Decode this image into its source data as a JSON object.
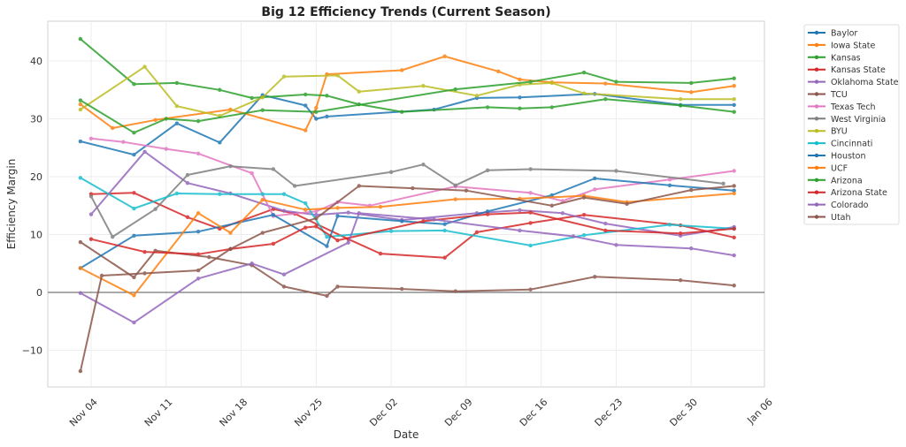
{
  "chart_data": {
    "type": "line",
    "title": "Big 12 Efficiency Trends (Current Season)",
    "xlabel": "Date",
    "ylabel": "Efficiency Margin",
    "x_ticks": [
      "Nov 04",
      "Nov 11",
      "Nov 18",
      "Nov 25",
      "Dec 02",
      "Dec 09",
      "Dec 16",
      "Dec 23",
      "Dec 30",
      "Jan 06"
    ],
    "x_tick_dates": [
      "2023-11-04",
      "2023-11-11",
      "2023-11-18",
      "2023-11-25",
      "2023-12-02",
      "2023-12-09",
      "2023-12-16",
      "2023-12-23",
      "2023-12-30",
      "2024-01-06"
    ],
    "y_ticks": [
      -10,
      0,
      10,
      20,
      30,
      40
    ],
    "xlim": [
      "2023-11-01",
      "2024-01-06"
    ],
    "ylim": [
      -16,
      47
    ],
    "grid": true,
    "zero_line": true,
    "legend_position": "outside-top-right",
    "series": [
      {
        "name": "Baylor",
        "color": "#1f77b4",
        "points": [
          [
            "2023-11-03",
            26.1
          ],
          [
            "2023-11-08",
            23.8
          ],
          [
            "2023-11-12",
            29.2
          ],
          [
            "2023-11-16",
            25.9
          ],
          [
            "2023-11-20",
            34.1
          ],
          [
            "2023-11-24",
            32.3
          ],
          [
            "2023-11-25",
            30.0
          ],
          [
            "2023-11-26",
            30.4
          ],
          [
            "2023-12-06",
            31.6
          ],
          [
            "2023-12-10",
            33.6
          ],
          [
            "2023-12-14",
            33.7
          ],
          [
            "2023-12-21",
            34.3
          ],
          [
            "2023-12-29",
            32.4
          ],
          [
            "2024-01-03",
            32.4
          ]
        ]
      },
      {
        "name": "Iowa State",
        "color": "#ff7f0e",
        "points": [
          [
            "2023-11-03",
            32.5
          ],
          [
            "2023-11-06",
            28.4
          ],
          [
            "2023-11-10",
            29.8
          ],
          [
            "2023-11-17",
            31.6
          ],
          [
            "2023-11-24",
            28.0
          ],
          [
            "2023-11-25",
            31.9
          ],
          [
            "2023-11-26",
            37.7
          ],
          [
            "2023-12-03",
            38.4
          ],
          [
            "2023-12-07",
            40.8
          ],
          [
            "2023-12-12",
            38.2
          ],
          [
            "2023-12-14",
            36.8
          ],
          [
            "2023-12-17",
            36.3
          ],
          [
            "2023-12-22",
            36.1
          ],
          [
            "2023-12-30",
            34.6
          ],
          [
            "2024-01-03",
            35.7
          ]
        ]
      },
      {
        "name": "Kansas",
        "color": "#2ca02c",
        "points": [
          [
            "2023-11-03",
            43.8
          ],
          [
            "2023-11-08",
            36.0
          ],
          [
            "2023-11-12",
            36.2
          ],
          [
            "2023-11-16",
            35.0
          ],
          [
            "2023-11-19",
            33.6
          ],
          [
            "2023-11-24",
            34.2
          ],
          [
            "2023-11-26",
            34.0
          ],
          [
            "2023-11-29",
            32.5
          ],
          [
            "2023-12-03",
            31.2
          ],
          [
            "2023-12-11",
            32.0
          ],
          [
            "2023-12-14",
            31.8
          ],
          [
            "2023-12-17",
            32.0
          ],
          [
            "2023-12-22",
            33.4
          ],
          [
            "2023-12-29",
            32.3
          ],
          [
            "2024-01-03",
            31.2
          ]
        ]
      },
      {
        "name": "Kansas State",
        "color": "#d62728",
        "points": [
          [
            "2023-11-04",
            17.0
          ],
          [
            "2023-11-08",
            17.2
          ],
          [
            "2023-11-13",
            13.0
          ],
          [
            "2023-11-16",
            11.0
          ],
          [
            "2023-11-21",
            14.4
          ],
          [
            "2023-11-23",
            13.6
          ],
          [
            "2023-11-28",
            9.2
          ],
          [
            "2023-12-01",
            6.7
          ],
          [
            "2023-12-07",
            6.0
          ],
          [
            "2023-12-10",
            10.4
          ],
          [
            "2023-12-15",
            12.0
          ],
          [
            "2023-12-20",
            13.4
          ],
          [
            "2023-12-29",
            11.6
          ],
          [
            "2024-01-03",
            9.5
          ]
        ]
      },
      {
        "name": "Oklahoma State",
        "color": "#9467bd",
        "points": [
          [
            "2023-11-04",
            13.5
          ],
          [
            "2023-11-09",
            24.3
          ],
          [
            "2023-11-13",
            18.9
          ],
          [
            "2023-11-17",
            17.1
          ],
          [
            "2023-11-22",
            14.1
          ],
          [
            "2023-11-25",
            13.4
          ],
          [
            "2023-11-28",
            13.8
          ],
          [
            "2023-12-03",
            12.5
          ],
          [
            "2023-12-10",
            13.7
          ],
          [
            "2023-12-14",
            14.2
          ],
          [
            "2023-12-18",
            13.7
          ],
          [
            "2023-12-22",
            11.9
          ],
          [
            "2023-12-29",
            9.8
          ],
          [
            "2024-01-03",
            11.3
          ]
        ]
      },
      {
        "name": "TCU",
        "color": "#8c564b",
        "points": [
          [
            "2023-11-03",
            8.7
          ],
          [
            "2023-11-08",
            2.6
          ],
          [
            "2023-11-10",
            7.2
          ],
          [
            "2023-11-15",
            6.1
          ],
          [
            "2023-11-19",
            4.7
          ],
          [
            "2023-11-22",
            1.0
          ],
          [
            "2023-11-26",
            -0.6
          ],
          [
            "2023-11-27",
            1.0
          ],
          [
            "2023-12-03",
            0.6
          ],
          [
            "2023-12-08",
            0.2
          ],
          [
            "2023-12-15",
            0.5
          ],
          [
            "2023-12-21",
            2.7
          ],
          [
            "2023-12-29",
            2.1
          ],
          [
            "2024-01-03",
            1.2
          ]
        ]
      },
      {
        "name": "Texas Tech",
        "color": "#e377c2",
        "points": [
          [
            "2023-11-04",
            26.6
          ],
          [
            "2023-11-07",
            26.0
          ],
          [
            "2023-11-11",
            24.8
          ],
          [
            "2023-11-14",
            24.0
          ],
          [
            "2023-11-19",
            20.6
          ],
          [
            "2023-11-21",
            13.2
          ],
          [
            "2023-11-25",
            14.0
          ],
          [
            "2023-11-27",
            15.6
          ],
          [
            "2023-11-30",
            15.0
          ],
          [
            "2023-12-08",
            18.3
          ],
          [
            "2023-12-15",
            17.2
          ],
          [
            "2023-12-18",
            15.8
          ],
          [
            "2023-12-21",
            17.8
          ],
          [
            "2023-12-28",
            19.5
          ],
          [
            "2024-01-03",
            21.0
          ]
        ]
      },
      {
        "name": "West Virginia",
        "color": "#7f7f7f",
        "points": [
          [
            "2023-11-04",
            16.6
          ],
          [
            "2023-11-06",
            9.6
          ],
          [
            "2023-11-10",
            14.4
          ],
          [
            "2023-11-13",
            20.3
          ],
          [
            "2023-11-17",
            21.8
          ],
          [
            "2023-11-21",
            21.3
          ],
          [
            "2023-11-23",
            18.4
          ],
          [
            "2023-12-02",
            20.8
          ],
          [
            "2023-12-05",
            22.1
          ],
          [
            "2023-12-08",
            18.5
          ],
          [
            "2023-12-11",
            21.1
          ],
          [
            "2023-12-15",
            21.3
          ],
          [
            "2023-12-23",
            21.0
          ],
          [
            "2024-01-02",
            18.8
          ]
        ]
      },
      {
        "name": "BYU",
        "color": "#bcbd22",
        "points": [
          [
            "2023-11-03",
            31.6
          ],
          [
            "2023-11-09",
            39.0
          ],
          [
            "2023-11-12",
            32.2
          ],
          [
            "2023-11-16",
            30.5
          ],
          [
            "2023-11-20",
            33.7
          ],
          [
            "2023-11-22",
            37.3
          ],
          [
            "2023-11-27",
            37.5
          ],
          [
            "2023-11-29",
            34.7
          ],
          [
            "2023-12-05",
            35.7
          ],
          [
            "2023-12-10",
            34.0
          ],
          [
            "2023-12-14",
            35.9
          ],
          [
            "2023-12-17",
            36.2
          ],
          [
            "2023-12-20",
            34.4
          ],
          [
            "2023-12-29",
            33.4
          ],
          [
            "2024-01-03",
            33.4
          ]
        ]
      },
      {
        "name": "Cincinnati",
        "color": "#17becf",
        "points": [
          [
            "2023-11-03",
            19.8
          ],
          [
            "2023-11-08",
            14.5
          ],
          [
            "2023-11-12",
            17.1
          ],
          [
            "2023-11-16",
            17.0
          ],
          [
            "2023-11-20",
            17.0
          ],
          [
            "2023-11-22",
            17.0
          ],
          [
            "2023-11-24",
            15.4
          ],
          [
            "2023-11-26",
            9.6
          ],
          [
            "2023-12-02",
            10.6
          ],
          [
            "2023-12-07",
            10.7
          ],
          [
            "2023-12-15",
            8.1
          ],
          [
            "2023-12-20",
            9.9
          ],
          [
            "2023-12-28",
            11.7
          ],
          [
            "2024-01-03",
            11.0
          ]
        ]
      },
      {
        "name": "Houston",
        "color": "#1f77b4",
        "points": [
          [
            "2023-11-03",
            4.2
          ],
          [
            "2023-11-08",
            9.8
          ],
          [
            "2023-11-14",
            10.5
          ],
          [
            "2023-11-21",
            13.4
          ],
          [
            "2023-11-26",
            8.0
          ],
          [
            "2023-11-27",
            13.2
          ],
          [
            "2023-12-03",
            12.3
          ],
          [
            "2023-12-07",
            11.8
          ],
          [
            "2023-12-11",
            14.0
          ],
          [
            "2023-12-17",
            16.8
          ],
          [
            "2023-12-21",
            19.7
          ],
          [
            "2023-12-28",
            18.5
          ],
          [
            "2024-01-03",
            17.6
          ]
        ]
      },
      {
        "name": "UCF",
        "color": "#ff7f0e",
        "points": [
          [
            "2023-11-03",
            4.2
          ],
          [
            "2023-11-08",
            -0.5
          ],
          [
            "2023-11-14",
            13.7
          ],
          [
            "2023-11-17",
            10.3
          ],
          [
            "2023-11-20",
            16.0
          ],
          [
            "2023-11-24",
            14.3
          ],
          [
            "2023-11-27",
            14.6
          ],
          [
            "2023-12-01",
            14.8
          ],
          [
            "2023-12-08",
            16.1
          ],
          [
            "2023-12-14",
            16.2
          ],
          [
            "2023-12-20",
            16.7
          ],
          [
            "2023-12-24",
            15.6
          ],
          [
            "2024-01-03",
            17.1
          ]
        ]
      },
      {
        "name": "Arizona",
        "color": "#2ca02c",
        "points": [
          [
            "2023-11-03",
            33.2
          ],
          [
            "2023-11-08",
            27.6
          ],
          [
            "2023-11-11",
            30.0
          ],
          [
            "2023-11-14",
            29.6
          ],
          [
            "2023-11-20",
            31.5
          ],
          [
            "2023-11-25",
            31.2
          ],
          [
            "2023-12-08",
            35.1
          ],
          [
            "2023-12-15",
            36.4
          ],
          [
            "2023-12-20",
            38.0
          ],
          [
            "2023-12-23",
            36.4
          ],
          [
            "2023-12-30",
            36.2
          ],
          [
            "2024-01-03",
            37.0
          ]
        ]
      },
      {
        "name": "Arizona State",
        "color": "#d62728",
        "points": [
          [
            "2023-11-04",
            9.2
          ],
          [
            "2023-11-09",
            7.0
          ],
          [
            "2023-11-14",
            6.6
          ],
          [
            "2023-11-17",
            7.5
          ],
          [
            "2023-11-21",
            8.4
          ],
          [
            "2023-11-24",
            11.2
          ],
          [
            "2023-11-25",
            11.4
          ],
          [
            "2023-11-27",
            9.0
          ],
          [
            "2023-12-05",
            12.3
          ],
          [
            "2023-12-11",
            13.5
          ],
          [
            "2023-12-15",
            13.8
          ],
          [
            "2023-12-22",
            10.7
          ],
          [
            "2023-12-29",
            10.2
          ],
          [
            "2024-01-03",
            11.0
          ]
        ]
      },
      {
        "name": "Colorado",
        "color": "#9467bd",
        "points": [
          [
            "2023-11-03",
            -0.1
          ],
          [
            "2023-11-08",
            -5.2
          ],
          [
            "2023-11-14",
            2.4
          ],
          [
            "2023-11-19",
            5.0
          ],
          [
            "2023-11-22",
            3.1
          ],
          [
            "2023-11-28",
            8.6
          ],
          [
            "2023-11-29",
            13.7
          ],
          [
            "2023-12-06",
            12.6
          ],
          [
            "2023-12-14",
            10.7
          ],
          [
            "2023-12-19",
            9.7
          ],
          [
            "2023-12-23",
            8.2
          ],
          [
            "2023-12-30",
            7.6
          ],
          [
            "2024-01-03",
            6.4
          ]
        ]
      },
      {
        "name": "Utah",
        "color": "#8c564b",
        "points": [
          [
            "2023-11-03",
            -13.6
          ],
          [
            "2023-11-05",
            2.9
          ],
          [
            "2023-11-09",
            3.3
          ],
          [
            "2023-11-14",
            3.8
          ],
          [
            "2023-11-17",
            7.5
          ],
          [
            "2023-11-20",
            10.3
          ],
          [
            "2023-11-25",
            12.8
          ],
          [
            "2023-11-29",
            18.4
          ],
          [
            "2023-12-04",
            18.0
          ],
          [
            "2023-12-09",
            17.6
          ],
          [
            "2023-12-17",
            15.0
          ],
          [
            "2023-12-20",
            16.4
          ],
          [
            "2023-12-24",
            15.3
          ],
          [
            "2023-12-30",
            17.7
          ],
          [
            "2024-01-03",
            18.4
          ]
        ]
      }
    ]
  }
}
